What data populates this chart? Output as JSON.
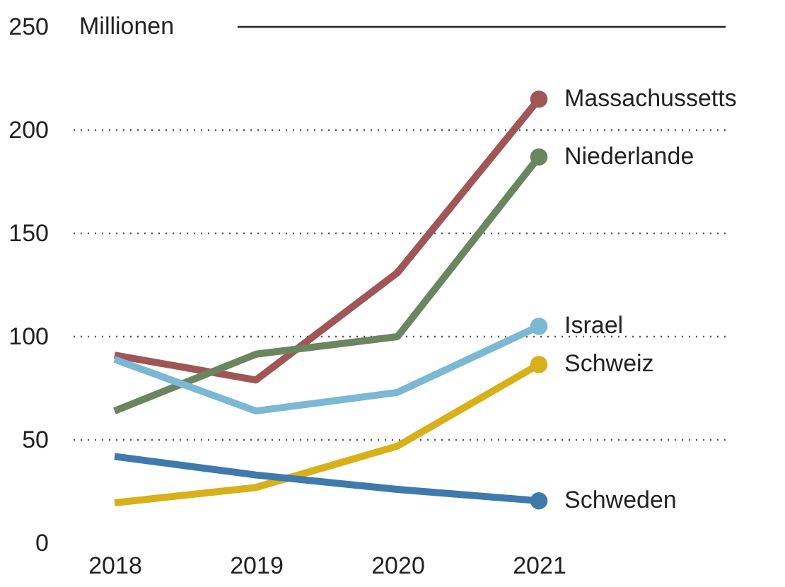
{
  "chart_data": {
    "type": "line",
    "ylabel": "Millionen",
    "x": [
      2018,
      2019,
      2020,
      2021
    ],
    "xlim": [
      2017.67,
      2022.32
    ],
    "xticks": [
      2018,
      2019,
      2020,
      2021
    ],
    "ylim": [
      0,
      250
    ],
    "yticks": [
      0,
      50,
      100,
      150,
      200,
      250
    ],
    "grid": "y",
    "line_style": "solid",
    "legend": false,
    "series": [
      {
        "name": "Massachussetts",
        "color": "#a05656",
        "values": [
          91,
          79,
          131,
          215
        ]
      },
      {
        "name": "Niederlande",
        "color": "#6b8560",
        "values": [
          64,
          91.5,
          100,
          187
        ]
      },
      {
        "name": "Israel",
        "color": "#7ab8d4",
        "values": [
          89,
          64,
          73,
          105
        ]
      },
      {
        "name": "Schweiz",
        "color": "#d8b01a",
        "values": [
          19.5,
          27,
          47,
          86.5
        ]
      },
      {
        "name": "Schweden",
        "color": "#3e7aab",
        "values": [
          42,
          33,
          26,
          20.5
        ]
      }
    ]
  }
}
